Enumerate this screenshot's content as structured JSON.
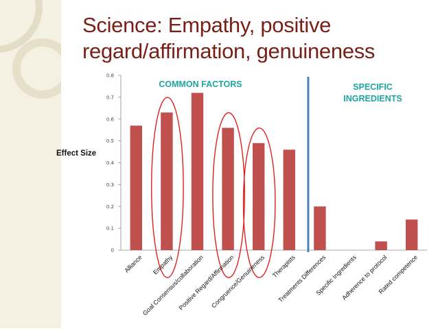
{
  "slide": {
    "title": "Science: Empathy, positive regard/affirmation, genuineness",
    "accent_color": "#7a1f17",
    "band_color": "#f4f0e2"
  },
  "chart_data": {
    "type": "bar",
    "title": "",
    "ylabel": "Effect Size",
    "xlabel": "",
    "ylim": [
      0,
      0.8
    ],
    "yticks": [
      "0",
      "0.1",
      "0.2",
      "0.3",
      "0.4",
      "0.5",
      "0.6",
      "0.7",
      "0.8"
    ],
    "categories": [
      "Alliance",
      "Empathy",
      "Goal Consensus/collaboration",
      "Positive Regard/Affirmation",
      "Congruence/Genuineness",
      "Therapists",
      "Treatments Differences",
      "Specific Ingredients",
      "Adherence to protocol",
      "Rated competence"
    ],
    "values": [
      0.57,
      0.63,
      0.72,
      0.56,
      0.49,
      0.46,
      0.2,
      0,
      0.04,
      0.14
    ],
    "bar_color": "#c0504d",
    "annotations": {
      "common": "COMMON FACTORS",
      "specific_line1": "SPECIFIC",
      "specific_line2": "INGREDIENTS",
      "annotation_color": "#1fa5a0",
      "divider_color": "#4f81bd",
      "circle_color": "#e02020"
    },
    "circled_categories": [
      "Empathy",
      "Positive Regard/Affirmation",
      "Congruence/Genuineness"
    ],
    "divider_after_category": "Therapists"
  }
}
